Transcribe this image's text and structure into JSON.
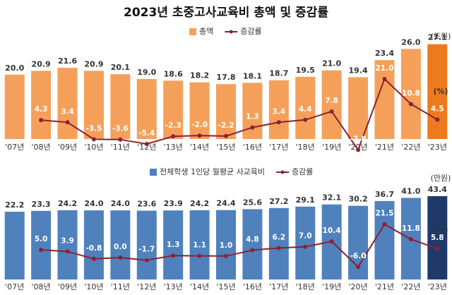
{
  "chart_data": [
    {
      "type": "bar",
      "title": "2023년 초중고사교육비 총액 및 증감률",
      "categories": [
        "'07년",
        "'08년",
        "'09년",
        "'10년",
        "'11년",
        "'12년",
        "'13년",
        "'14년",
        "'15년",
        "'16년",
        "'17년",
        "'18년",
        "'19년",
        "'20년",
        "'21년",
        "'22년",
        "'23년"
      ],
      "unit": "(조원)",
      "y2_unit": "(%)",
      "ylim": [
        5,
        30
      ],
      "y2lim": [
        -10,
        25
      ],
      "grid": false,
      "series": [
        {
          "name": "총액",
          "type": "bar",
          "color": "#f5a05a",
          "colors": [
            "#f5a05a",
            "#f5a05a",
            "#f5a05a",
            "#f5a05a",
            "#f5a05a",
            "#f5a05a",
            "#f5a05a",
            "#f5a05a",
            "#f5a05a",
            "#f5a05a",
            "#f5a05a",
            "#f5a05a",
            "#f5a05a",
            "#f5a05a",
            "#f5a05a",
            "#f5a05a",
            "#ec7a1e"
          ],
          "values": [
            20.0,
            20.9,
            21.6,
            20.9,
            20.1,
            19.0,
            18.6,
            18.2,
            17.8,
            18.1,
            18.7,
            19.5,
            21.0,
            19.4,
            23.4,
            26.0,
            27.1
          ],
          "value_labels": [
            "20.0",
            "20.9",
            "21.6",
            "20.9",
            "20.1",
            "19.0",
            "18.6",
            "18.2",
            "17.8",
            "18.1",
            "18.7",
            "19.5",
            "21.0",
            "19.4",
            "23.4",
            "26.0",
            "27.1"
          ]
        },
        {
          "name": "증감률",
          "type": "line",
          "axis": "y2",
          "color": "#8b2232",
          "values": [
            null,
            4.3,
            3.4,
            -3.5,
            -3.6,
            -5.4,
            -2.3,
            -2.0,
            -2.2,
            1.3,
            3.4,
            4.4,
            7.8,
            -7.8,
            21.0,
            10.8,
            4.5
          ],
          "value_labels": [
            null,
            "4.3",
            "3.4",
            "-3.5",
            "-3.6",
            "-5.4",
            "-2.3",
            "-2.0",
            "-2.2",
            "1.3",
            "3.4",
            "4.4",
            "7.8",
            "-7.8",
            "21.0",
            "10.8",
            "4.5"
          ]
        }
      ]
    },
    {
      "type": "bar",
      "categories": [
        "'07년",
        "'08년",
        "'09년",
        "'10년",
        "'11년",
        "'12년",
        "'13년",
        "'14년",
        "'15년",
        "'16년",
        "'17년",
        "'18년",
        "'19년",
        "'20년",
        "'21년",
        "'22년",
        "'23년"
      ],
      "unit": "(만원)",
      "y2_unit": "(%)",
      "ylim": [
        -70,
        50
      ],
      "y2lim": [
        -10,
        25
      ],
      "grid": false,
      "series": [
        {
          "name": "전체학생 1인당 월평균 사교육비",
          "type": "bar",
          "color": "#4f81bd",
          "colors": [
            "#4f81bd",
            "#4f81bd",
            "#4f81bd",
            "#4f81bd",
            "#4f81bd",
            "#4f81bd",
            "#4f81bd",
            "#4f81bd",
            "#4f81bd",
            "#4f81bd",
            "#4f81bd",
            "#4f81bd",
            "#4f81bd",
            "#4f81bd",
            "#4f81bd",
            "#4f81bd",
            "#1f3a68"
          ],
          "values": [
            22.2,
            23.3,
            24.2,
            24.0,
            24.0,
            23.6,
            23.9,
            24.2,
            24.4,
            25.6,
            27.2,
            29.1,
            32.1,
            30.2,
            36.7,
            41.0,
            43.4
          ],
          "value_labels": [
            "22.2",
            "23.3",
            "24.2",
            "24.0",
            "24.0",
            "23.6",
            "23.9",
            "24.2",
            "24.4",
            "25.6",
            "27.2",
            "29.1",
            "32.1",
            "30.2",
            "36.7",
            "41.0",
            "43.4"
          ]
        },
        {
          "name": "증감률",
          "type": "line",
          "axis": "y2",
          "color": "#8b2232",
          "values": [
            null,
            5.0,
            3.9,
            -0.8,
            0.0,
            -1.7,
            1.3,
            1.1,
            1.0,
            4.8,
            6.2,
            7.0,
            10.4,
            -6.0,
            21.5,
            11.8,
            5.8
          ],
          "value_labels": [
            null,
            "5.0",
            "3.9",
            "-0.8",
            "0.0",
            "-1.7",
            "1.3",
            "1.1",
            "1.0",
            "4.8",
            "6.2",
            "7.0",
            "10.4",
            "-6.0",
            "21.5",
            "11.8",
            "5.8"
          ]
        }
      ]
    }
  ]
}
